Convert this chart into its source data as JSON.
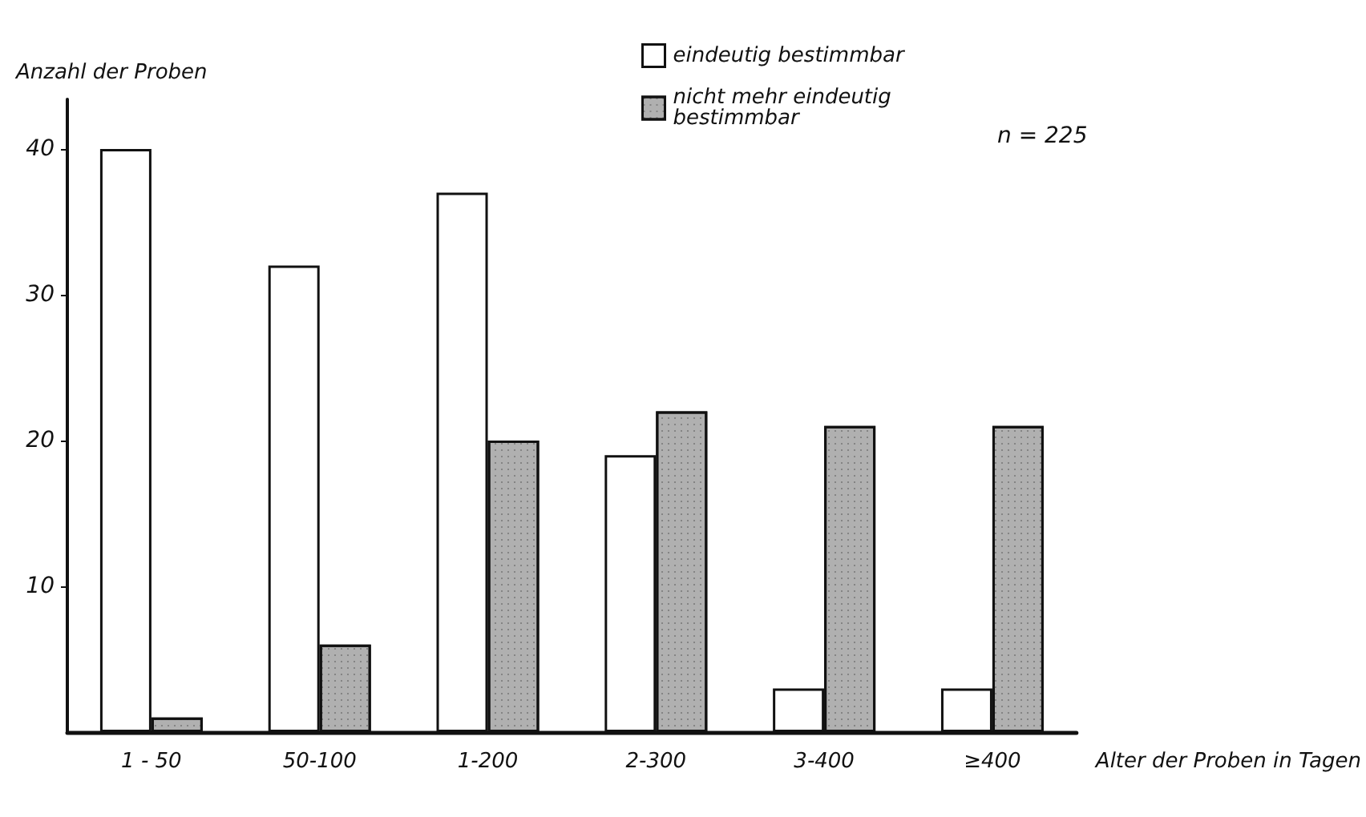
{
  "chart_data": {
    "type": "bar",
    "ylabel": "Anzahl der Proben",
    "xlabel": "Alter der Proben in Tagen",
    "categories": [
      "1 - 50",
      "50-100",
      "1-200",
      "2-300",
      "3-400",
      "≥400"
    ],
    "series": [
      {
        "name": "eindeutig bestimmbar",
        "color": "#ffffff",
        "values": [
          40,
          32,
          37,
          19,
          3,
          3
        ]
      },
      {
        "name": "nicht mehr eindeutig bestimmbar",
        "color": "#b0b0b0",
        "values": [
          1,
          6,
          20,
          22,
          21,
          21
        ]
      }
    ],
    "ylim": [
      0,
      43.4
    ],
    "yticks": [
      10,
      20,
      30,
      40
    ],
    "grid": false,
    "legend": "top right",
    "annotations": [
      "n = 225"
    ]
  }
}
